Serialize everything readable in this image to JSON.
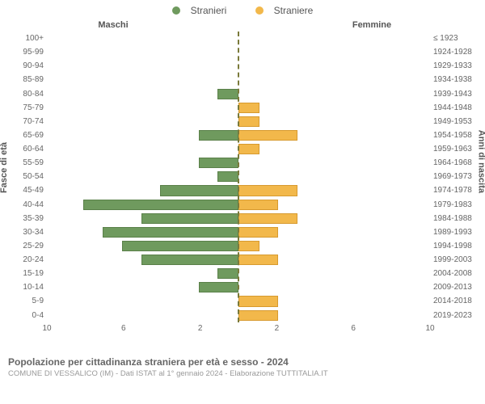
{
  "legend": {
    "male": {
      "label": "Stranieri",
      "color": "#6f9a5e"
    },
    "female": {
      "label": "Straniere",
      "color": "#f2b84b"
    }
  },
  "headers": {
    "left": "Maschi",
    "right": "Femmine"
  },
  "y_axis_left_title": "Fasce di età",
  "y_axis_right_title": "Anni di nascita",
  "chart": {
    "type": "population-pyramid",
    "x_max": 10,
    "x_ticks_left": [
      10,
      6,
      2
    ],
    "x_ticks_right": [
      2,
      6,
      10
    ],
    "bar_male_fill": "#6f9a5e",
    "bar_male_border": "#5a8049",
    "bar_female_fill": "#f2b84b",
    "bar_female_border": "#d79a2f",
    "background_color": "#ffffff",
    "rows": [
      {
        "age": "100+",
        "year": "≤ 1923",
        "m": 0,
        "f": 0
      },
      {
        "age": "95-99",
        "year": "1924-1928",
        "m": 0,
        "f": 0
      },
      {
        "age": "90-94",
        "year": "1929-1933",
        "m": 0,
        "f": 0
      },
      {
        "age": "85-89",
        "year": "1934-1938",
        "m": 0,
        "f": 0
      },
      {
        "age": "80-84",
        "year": "1939-1943",
        "m": 1,
        "f": 0
      },
      {
        "age": "75-79",
        "year": "1944-1948",
        "m": 0,
        "f": 1
      },
      {
        "age": "70-74",
        "year": "1949-1953",
        "m": 0,
        "f": 1
      },
      {
        "age": "65-69",
        "year": "1954-1958",
        "m": 2,
        "f": 3
      },
      {
        "age": "60-64",
        "year": "1959-1963",
        "m": 0,
        "f": 1
      },
      {
        "age": "55-59",
        "year": "1964-1968",
        "m": 2,
        "f": 0
      },
      {
        "age": "50-54",
        "year": "1969-1973",
        "m": 1,
        "f": 0
      },
      {
        "age": "45-49",
        "year": "1974-1978",
        "m": 4,
        "f": 3
      },
      {
        "age": "40-44",
        "year": "1979-1983",
        "m": 8,
        "f": 2
      },
      {
        "age": "35-39",
        "year": "1984-1988",
        "m": 5,
        "f": 3
      },
      {
        "age": "30-34",
        "year": "1989-1993",
        "m": 7,
        "f": 2
      },
      {
        "age": "25-29",
        "year": "1994-1998",
        "m": 6,
        "f": 1
      },
      {
        "age": "20-24",
        "year": "1999-2003",
        "m": 5,
        "f": 2
      },
      {
        "age": "15-19",
        "year": "2004-2008",
        "m": 1,
        "f": 0
      },
      {
        "age": "10-14",
        "year": "2009-2013",
        "m": 2,
        "f": 0
      },
      {
        "age": "5-9",
        "year": "2014-2018",
        "m": 0,
        "f": 2
      },
      {
        "age": "0-4",
        "year": "2019-2023",
        "m": 0,
        "f": 2
      }
    ]
  },
  "footer": {
    "title": "Popolazione per cittadinanza straniera per età e sesso - 2024",
    "source": "COMUNE DI VESSALICO (IM) - Dati ISTAT al 1° gennaio 2024 - Elaborazione TUTTITALIA.IT"
  }
}
